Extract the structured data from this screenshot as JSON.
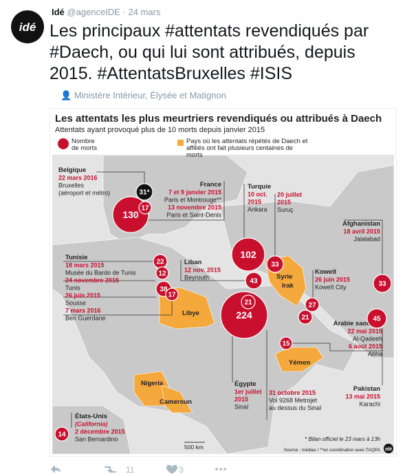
{
  "tweet": {
    "author": "Idé",
    "handle": "@agenceIDE",
    "date": "24 mars",
    "avatar_logo": "idé",
    "text": "Les principaux #attentats revendiqués par #Daech, ou qui lui sont attribués, depuis 2015. #AttentatsBruxelles #ISIS",
    "location": "Ministère Intérieur, Élysée et Matignon",
    "retweets": 11,
    "likes": 3
  },
  "infographic": {
    "title": "Les attentats les plus meurtriers revendiqués ou attribués à Daech",
    "subtitle": "Attentats ayant provoqué plus de 10 morts depuis janvier 2015",
    "legend": [
      "Nombre de morts",
      "Pays où les attentats répétés de Daech et affiliés ont fait plusieurs centaines de morts"
    ],
    "countries": [
      "Syrie",
      "Irak",
      "Libye",
      "Yémen",
      "Nigeria",
      "Cameroun"
    ],
    "bubbles": [
      "31*",
      130,
      17,
      102,
      33,
      22,
      12,
      38,
      17,
      43,
      21,
      224,
      27,
      21,
      33,
      45,
      15,
      14
    ],
    "annotations": [
      {
        "country": "Belgique",
        "lines": [
          {
            "text": "22 mars 2016",
            "red": true
          },
          {
            "text": "Bruxelles"
          },
          {
            "text": "(aéroport et métro)"
          }
        ]
      },
      {
        "country": "France",
        "lines": [
          {
            "text": "7 et 9 janvier 2015",
            "red": true
          },
          {
            "text": "Paris et Montrouge**"
          },
          {
            "text": "13 novembre 2015",
            "red": true
          },
          {
            "text": "Paris et Saint-Denis"
          }
        ]
      },
      {
        "country": "Turquie",
        "lines": [
          {
            "text": "10 oct.",
            "red": true
          },
          {
            "text": "2015",
            "red": true
          },
          {
            "text": "Ankara"
          }
        ]
      },
      {
        "lines": [
          {
            "text": "20 juillet",
            "red": true
          },
          {
            "text": "2015",
            "red": true
          },
          {
            "text": "Suruç"
          }
        ]
      },
      {
        "country": "Afghanistan",
        "lines": [
          {
            "text": "18 avril 2015",
            "red": true
          },
          {
            "text": "Jalalabad"
          }
        ]
      },
      {
        "country": "Tunisie",
        "lines": [
          {
            "text": "18 mars 2015",
            "red": true
          },
          {
            "text": "Musée du Bardo de Tunis"
          },
          {
            "text": "24 novembre 2015",
            "red": true
          },
          {
            "text": "Tunis"
          },
          {
            "text": "26 juin 2015",
            "red": true
          },
          {
            "text": "Sousse"
          },
          {
            "text": "7 mars 2016",
            "red": true
          },
          {
            "text": "Ben Guerdane"
          }
        ]
      },
      {
        "country": "Liban",
        "lines": [
          {
            "text": "12 nov. 2015",
            "red": true
          },
          {
            "text": "Beyrouth"
          }
        ]
      },
      {
        "country": "Koweït",
        "lines": [
          {
            "text": "26 juin 2015",
            "red": true
          },
          {
            "text": "Koweït City"
          }
        ]
      },
      {
        "country": "Arabie saoudite",
        "lines": [
          {
            "text": "22 mai 2015",
            "red": true
          },
          {
            "text": "Al-Qadeeh"
          },
          {
            "text": "6 août 2015",
            "red": true
          },
          {
            "text": "Abha"
          }
        ]
      },
      {
        "country": "Pakistan",
        "lines": [
          {
            "text": "13 mai 2015",
            "red": true
          },
          {
            "text": "Karachi"
          }
        ]
      },
      {
        "country": "Égypte",
        "lines": [
          {
            "text": "1er juillet",
            "red": true
          },
          {
            "text": "2015",
            "red": true
          },
          {
            "text": "Sinaï"
          }
        ]
      },
      {
        "lines": [
          {
            "text": "31 octobre 2015",
            "red": true
          },
          {
            "text": "Vol 9268 Metrojet"
          },
          {
            "text": "au dessus du Sinaï"
          }
        ]
      },
      {
        "country": "États-Unis",
        "lines": [
          {
            "text": "(California)",
            "red": true,
            "italic": true
          },
          {
            "text": "2 décembre 2015",
            "red": true
          },
          {
            "text": "San Bernardino"
          }
        ]
      }
    ],
    "scale": "500 km",
    "note": "* Bilan officiel le 23 mars à 13h",
    "source": "Source : médias / **en coordination avec TAQPA"
  }
}
